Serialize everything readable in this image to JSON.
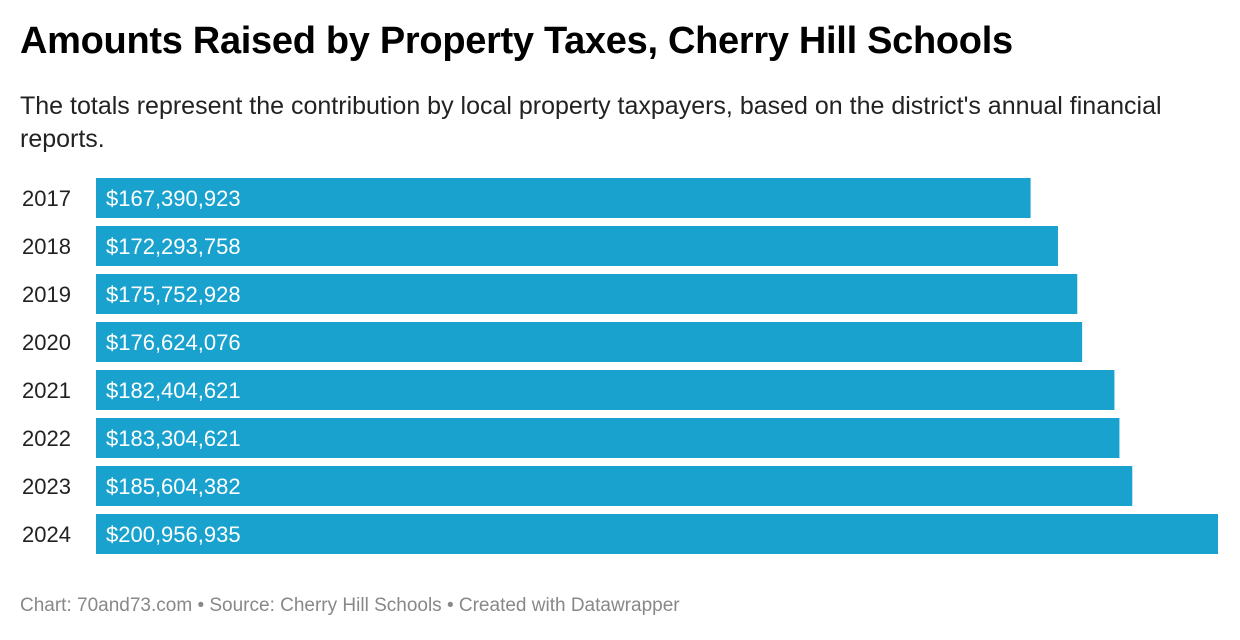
{
  "header": {
    "title": "Amounts Raised by Property Taxes, Cherry Hill Schools",
    "subtitle": "The totals represent the contribution by local property taxpayers, based on the district's annual financial reports."
  },
  "chart_data": {
    "type": "bar",
    "orientation": "horizontal",
    "categories": [
      "2017",
      "2018",
      "2019",
      "2020",
      "2021",
      "2022",
      "2023",
      "2024"
    ],
    "values": [
      167390923,
      172293758,
      175752928,
      176624076,
      182404621,
      183304621,
      185604382,
      200956935
    ],
    "value_labels": [
      "$167,390,923",
      "$172,293,758",
      "$175,752,928",
      "$176,624,076",
      "$182,404,621",
      "$183,304,621",
      "$185,604,382",
      "$200,956,935"
    ],
    "xlim": [
      0,
      200956935
    ],
    "grid": false,
    "bar_color": "#1aa2cf",
    "label_color": "#ffffff"
  },
  "footer": {
    "text": "Chart: 70and73.com • Source: Cherry Hill Schools • Created with Datawrapper"
  }
}
